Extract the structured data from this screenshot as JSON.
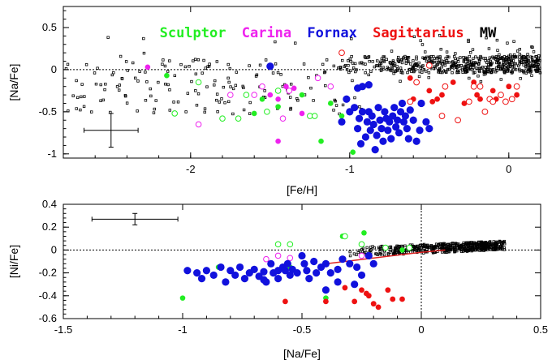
{
  "colors": {
    "Sculptor": "#22ee22",
    "Carina": "#ee22ee",
    "Fornax": "#1111dd",
    "Sagittarius": "#ee1111",
    "MW": "#000000",
    "trend": "#dd2222"
  },
  "chart_data": [
    {
      "type": "scatter",
      "xlabel": "[Fe/H]",
      "ylabel": "[Na/Fe]",
      "xlim": [
        -2.8,
        0.2
      ],
      "ylim": [
        -1.05,
        0.75
      ],
      "xticks": [
        -2,
        -1,
        0
      ],
      "yticks": [
        -1,
        -0.5,
        0,
        0.5
      ],
      "grid": false,
      "reference_lines": [
        {
          "axis": "y",
          "value": 0,
          "style": "dotted"
        }
      ],
      "error_bar": {
        "x": -2.5,
        "y": -0.72,
        "xerr": 0.17,
        "yerr": 0.2
      },
      "legend": [
        {
          "name": "Sculptor",
          "color": "#22ee22"
        },
        {
          "name": "Carina",
          "color": "#ee22ee"
        },
        {
          "name": "Fornax",
          "color": "#1111dd"
        },
        {
          "name": "Sagittarius",
          "color": "#ee1111"
        },
        {
          "name": "MW",
          "color": "#000000"
        }
      ],
      "legend_placement": "top",
      "series": [
        {
          "name": "Sculptor",
          "marker": "filled",
          "points": [
            [
              -2.15,
              -0.07
            ],
            [
              -1.6,
              -0.52
            ],
            [
              -1.55,
              -0.35
            ],
            [
              -1.45,
              -0.44
            ],
            [
              -1.3,
              -0.3
            ],
            [
              -1.18,
              -0.85
            ],
            [
              -1.12,
              -0.4
            ],
            [
              -1.05,
              -0.55
            ],
            [
              -0.98,
              -0.98
            ]
          ]
        },
        {
          "name": "Sculptor",
          "marker": "open",
          "points": [
            [
              -2.1,
              -0.52
            ],
            [
              -1.95,
              -0.15
            ],
            [
              -1.8,
              -0.58
            ],
            [
              -1.7,
              -0.58
            ],
            [
              -1.65,
              -0.3
            ],
            [
              -1.52,
              -0.5
            ],
            [
              -1.45,
              -0.25
            ],
            [
              -1.25,
              -0.55
            ],
            [
              -1.22,
              -0.55
            ]
          ]
        },
        {
          "name": "Carina",
          "marker": "filled",
          "points": [
            [
              -2.27,
              0.03
            ],
            [
              -1.5,
              -0.3
            ],
            [
              -1.45,
              -0.35
            ],
            [
              -1.4,
              -0.2
            ],
            [
              -1.35,
              -0.22
            ],
            [
              -1.3,
              -0.52
            ],
            [
              -1.45,
              -0.85
            ]
          ]
        },
        {
          "name": "Carina",
          "marker": "open",
          "points": [
            [
              -1.95,
              -0.65
            ],
            [
              -1.75,
              -0.3
            ],
            [
              -1.6,
              -0.3
            ],
            [
              -1.55,
              -0.2
            ],
            [
              -1.38,
              -0.25
            ],
            [
              -1.2,
              -0.1
            ],
            [
              -1.12,
              -0.2
            ],
            [
              -1.42,
              -0.58
            ]
          ]
        },
        {
          "name": "Fornax",
          "marker": "filled",
          "points": [
            [
              -1.5,
              0.04
            ],
            [
              -1.05,
              -0.62
            ],
            [
              -1.02,
              -0.35
            ],
            [
              -1.0,
              -0.5
            ],
            [
              -0.97,
              -0.45
            ],
            [
              -0.95,
              -0.7
            ],
            [
              -0.94,
              -0.58
            ],
            [
              -0.93,
              -0.88
            ],
            [
              -0.92,
              -0.5
            ],
            [
              -0.9,
              -0.8
            ],
            [
              -0.89,
              -0.62
            ],
            [
              -0.88,
              -0.5
            ],
            [
              -0.87,
              -0.72
            ],
            [
              -0.86,
              -0.55
            ],
            [
              -0.85,
              -0.65
            ],
            [
              -0.84,
              -0.95
            ],
            [
              -0.83,
              -0.78
            ],
            [
              -0.82,
              -0.45
            ],
            [
              -0.81,
              -0.6
            ],
            [
              -0.8,
              -0.7
            ],
            [
              -0.79,
              -0.85
            ],
            [
              -0.78,
              -0.5
            ],
            [
              -0.77,
              -0.58
            ],
            [
              -0.76,
              -0.72
            ],
            [
              -0.75,
              -0.62
            ],
            [
              -0.74,
              -0.82
            ],
            [
              -0.73,
              -0.55
            ],
            [
              -0.72,
              -0.45
            ],
            [
              -0.71,
              -0.68
            ],
            [
              -0.7,
              -0.6
            ],
            [
              -0.69,
              -0.75
            ],
            [
              -0.68,
              -0.5
            ],
            [
              -0.67,
              -0.4
            ],
            [
              -0.66,
              -0.62
            ],
            [
              -0.65,
              -0.55
            ],
            [
              -0.64,
              -0.7
            ],
            [
              -0.63,
              -0.82
            ],
            [
              -0.62,
              -0.48
            ],
            [
              -0.6,
              -0.6
            ],
            [
              -0.58,
              -0.85
            ],
            [
              -0.56,
              -0.72
            ],
            [
              -0.55,
              -0.4
            ],
            [
              -0.52,
              -0.62
            ],
            [
              -0.5,
              -0.7
            ],
            [
              -0.95,
              -0.22
            ],
            [
              -0.92,
              -0.2
            ],
            [
              -0.88,
              -0.18
            ]
          ]
        },
        {
          "name": "Sagittarius",
          "marker": "filled",
          "points": [
            [
              -0.62,
              -0.1
            ],
            [
              -0.5,
              -0.25
            ],
            [
              -0.48,
              -0.38
            ],
            [
              -0.45,
              -0.35
            ],
            [
              -0.42,
              -0.3
            ],
            [
              -0.35,
              -0.15
            ],
            [
              -0.28,
              -0.4
            ],
            [
              -0.22,
              -0.15
            ],
            [
              -0.2,
              -0.3
            ],
            [
              -0.18,
              -0.35
            ],
            [
              -0.15,
              -0.5
            ],
            [
              -0.1,
              -0.25
            ],
            [
              -0.08,
              -0.35
            ],
            [
              0.0,
              -0.2
            ],
            [
              0.05,
              -0.3
            ],
            [
              -0.6,
              -0.35
            ]
          ]
        },
        {
          "name": "Sagittarius",
          "marker": "open",
          "points": [
            [
              -1.05,
              0.2
            ],
            [
              -0.62,
              -0.38
            ],
            [
              -0.58,
              -0.15
            ],
            [
              -0.5,
              0.05
            ],
            [
              -0.42,
              -0.55
            ],
            [
              -0.4,
              -0.2
            ],
            [
              -0.32,
              -0.6
            ],
            [
              -0.25,
              -0.38
            ],
            [
              -0.22,
              -0.2
            ],
            [
              -0.18,
              -0.2
            ],
            [
              -0.15,
              -0.5
            ],
            [
              -0.12,
              -0.35
            ],
            [
              -0.1,
              -0.38
            ],
            [
              -0.05,
              -0.3
            ],
            [
              -0.02,
              -0.38
            ],
            [
              0.02,
              -0.35
            ],
            [
              0.05,
              -0.2
            ]
          ]
        }
      ]
    },
    {
      "type": "scatter",
      "xlabel": "[Na/Fe]",
      "ylabel": "[Ni/Fe]",
      "xlim": [
        -1.5,
        0.5
      ],
      "ylim": [
        -0.6,
        0.4
      ],
      "xticks": [
        -1.5,
        -1,
        -0.5,
        0,
        0.5
      ],
      "yticks": [
        -0.6,
        -0.4,
        -0.2,
        0,
        0.2,
        0.4
      ],
      "grid": false,
      "reference_lines": [
        {
          "axis": "y",
          "value": 0,
          "style": "dotted"
        },
        {
          "axis": "x",
          "value": 0,
          "style": "dotted"
        }
      ],
      "error_bar": {
        "x": -1.2,
        "y": 0.27,
        "xerr": 0.18,
        "yerr": 0.05
      },
      "trend_line": [
        [
          -0.4,
          -0.12
        ],
        [
          0.0,
          -0.02
        ],
        [
          0.1,
          0.0
        ]
      ],
      "series": [
        {
          "name": "Sculptor",
          "marker": "filled",
          "points": [
            [
              -1.0,
              -0.42
            ],
            [
              -0.85,
              -0.15
            ],
            [
              -0.55,
              -0.15
            ],
            [
              -0.4,
              -0.42
            ],
            [
              -0.33,
              0.12
            ],
            [
              -0.24,
              0.15
            ],
            [
              -0.08,
              0.0
            ]
          ]
        },
        {
          "name": "Sculptor",
          "marker": "open",
          "points": [
            [
              -0.6,
              0.05
            ],
            [
              -0.55,
              0.05
            ],
            [
              -0.32,
              0.12
            ],
            [
              -0.25,
              0.05
            ],
            [
              -0.15,
              0.02
            ],
            [
              -0.05,
              0.02
            ]
          ]
        },
        {
          "name": "Carina",
          "marker": "open",
          "points": [
            [
              -0.65,
              -0.08
            ],
            [
              -0.6,
              -0.05
            ],
            [
              -0.25,
              -0.05
            ],
            [
              -0.55,
              -0.07
            ]
          ]
        },
        {
          "name": "Fornax",
          "marker": "filled",
          "points": [
            [
              -0.98,
              -0.18
            ],
            [
              -0.94,
              -0.2
            ],
            [
              -0.92,
              -0.25
            ],
            [
              -0.9,
              -0.18
            ],
            [
              -0.87,
              -0.22
            ],
            [
              -0.84,
              -0.15
            ],
            [
              -0.82,
              -0.28
            ],
            [
              -0.8,
              -0.18
            ],
            [
              -0.78,
              -0.22
            ],
            [
              -0.76,
              -0.15
            ],
            [
              -0.74,
              -0.25
            ],
            [
              -0.72,
              -0.2
            ],
            [
              -0.7,
              -0.17
            ],
            [
              -0.68,
              -0.23
            ],
            [
              -0.66,
              -0.19
            ],
            [
              -0.65,
              -0.28
            ],
            [
              -0.63,
              -0.12
            ],
            [
              -0.62,
              -0.2
            ],
            [
              -0.6,
              -0.25
            ],
            [
              -0.58,
              -0.15
            ],
            [
              -0.57,
              -0.18
            ],
            [
              -0.56,
              -0.12
            ],
            [
              -0.55,
              -0.22
            ],
            [
              -0.54,
              -0.17
            ],
            [
              -0.52,
              -0.2
            ],
            [
              -0.5,
              -0.05
            ],
            [
              -0.49,
              -0.12
            ],
            [
              -0.48,
              -0.18
            ],
            [
              -0.47,
              -0.25
            ],
            [
              -0.45,
              -0.1
            ],
            [
              -0.44,
              -0.2
            ],
            [
              -0.42,
              -0.15
            ],
            [
              -0.4,
              -0.12
            ],
            [
              -0.38,
              -0.2
            ],
            [
              -0.35,
              -0.17
            ],
            [
              -0.33,
              -0.08
            ],
            [
              -0.3,
              -0.12
            ],
            [
              -0.28,
              -0.3
            ],
            [
              -0.27,
              -0.15
            ],
            [
              -0.25,
              -0.22
            ],
            [
              -0.22,
              -0.05
            ],
            [
              -0.2,
              -0.12
            ],
            [
              -0.35,
              -0.28
            ],
            [
              -0.4,
              -0.35
            ],
            [
              -0.6,
              -0.18
            ],
            [
              -0.66,
              -0.26
            ]
          ]
        },
        {
          "name": "Sagittarius",
          "marker": "filled",
          "points": [
            [
              -0.57,
              -0.45
            ],
            [
              -0.4,
              -0.45
            ],
            [
              -0.32,
              -0.33
            ],
            [
              -0.28,
              -0.45
            ],
            [
              -0.25,
              -0.35
            ],
            [
              -0.22,
              -0.4
            ],
            [
              -0.2,
              -0.47
            ],
            [
              -0.18,
              -0.5
            ],
            [
              -0.14,
              -0.35
            ],
            [
              -0.12,
              -0.43
            ],
            [
              -0.08,
              -0.43
            ],
            [
              -0.23,
              -0.38
            ]
          ]
        }
      ]
    }
  ]
}
